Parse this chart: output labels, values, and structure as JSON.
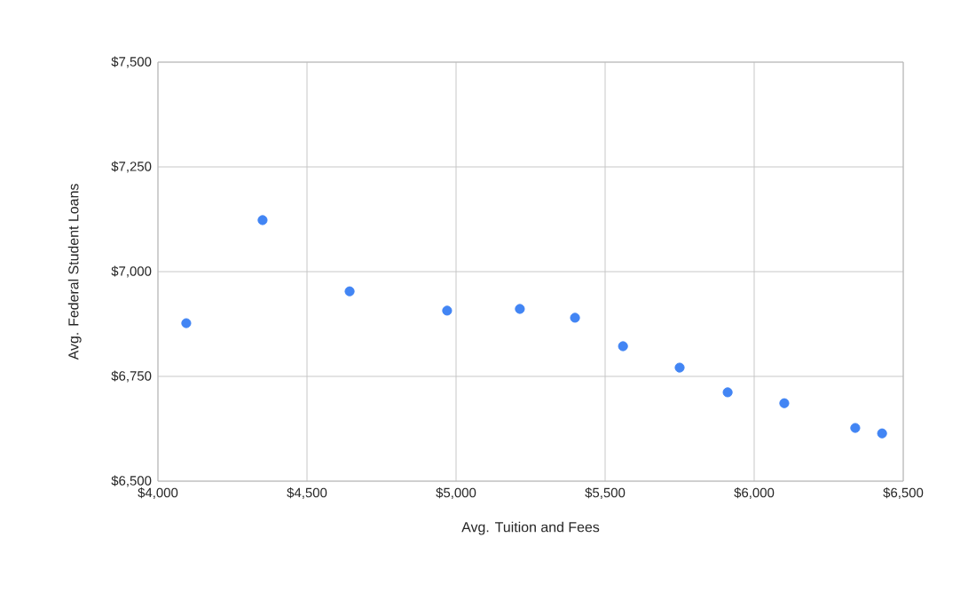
{
  "chart_data": {
    "type": "scatter",
    "xlabel": "Avg. Tuition and Fees",
    "ylabel": "Avg. Federal Student Loans",
    "x": [
      4095,
      4351,
      4643,
      4970,
      5214,
      5399,
      5560,
      5750,
      5911,
      6101,
      6339,
      6429
    ],
    "values": [
      6877,
      7123,
      6953,
      6907,
      6911,
      6890,
      6822,
      6771,
      6712,
      6686,
      6627,
      6614
    ],
    "color": "#4285f4",
    "marker": "circle",
    "grid": true,
    "xlim": [
      4000,
      6500
    ],
    "xticks": [
      {
        "value": 4000,
        "label": "$4,000"
      },
      {
        "value": 4500,
        "label": "$4,500"
      },
      {
        "value": 5000,
        "label": "$5,000"
      },
      {
        "value": 5500,
        "label": "$5,500"
      },
      {
        "value": 6000,
        "label": "$6,000"
      },
      {
        "value": 6500,
        "label": "$6,500"
      }
    ],
    "ylim": [
      6500,
      7500
    ],
    "yticks": [
      {
        "value": 6500,
        "label": "$6,500"
      },
      {
        "value": 6750,
        "label": "$6,750"
      },
      {
        "value": 7000,
        "label": "$7,000"
      },
      {
        "value": 7250,
        "label": "$7,250"
      },
      {
        "value": 7500,
        "label": "$7,500"
      }
    ]
  }
}
